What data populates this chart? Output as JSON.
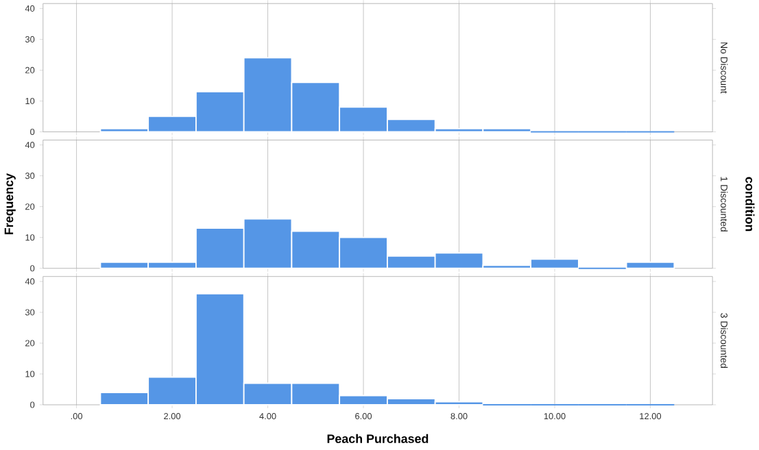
{
  "chart_data": [
    {
      "type": "histogram",
      "y2label": "No Discount",
      "bins": [
        0.5,
        1.5,
        2.5,
        3.5,
        4.5,
        5.5,
        6.5,
        7.5,
        8.5,
        9.5,
        10.5,
        11.5,
        12.5
      ],
      "values": [
        1,
        5,
        13,
        24,
        16,
        8,
        4,
        1,
        1,
        0,
        0,
        0
      ],
      "color": "#5596e6",
      "xlim": [
        -0.7,
        13.3
      ],
      "ylim": [
        0,
        41.6
      ],
      "xticks": [
        {
          "value": 0,
          "label": null
        },
        {
          "value": 2,
          "label": null
        },
        {
          "value": 4,
          "label": null
        },
        {
          "value": 6,
          "label": null
        },
        {
          "value": 8,
          "label": null
        },
        {
          "value": 10,
          "label": null
        },
        {
          "value": 12,
          "label": null
        }
      ],
      "yticks": [
        0,
        10,
        20,
        30,
        40
      ],
      "grid": "x",
      "tick_labels": "y"
    },
    {
      "type": "histogram",
      "y2label": "1 Discounted",
      "ylabel": "Frequency",
      "annotations": [
        "condition"
      ],
      "bins": [
        0.5,
        1.5,
        2.5,
        3.5,
        4.5,
        5.5,
        6.5,
        7.5,
        8.5,
        9.5,
        10.5,
        11.5,
        12.5
      ],
      "values": [
        2,
        2,
        13,
        16,
        12,
        10,
        4,
        5,
        1,
        3,
        0,
        2
      ],
      "color": "#5596e6",
      "xlim": [
        -0.7,
        13.3
      ],
      "ylim": [
        0,
        41.6
      ],
      "xticks": [
        {
          "value": 0,
          "label": null
        },
        {
          "value": 2,
          "label": null
        },
        {
          "value": 4,
          "label": null
        },
        {
          "value": 6,
          "label": null
        },
        {
          "value": 8,
          "label": null
        },
        {
          "value": 10,
          "label": null
        },
        {
          "value": 12,
          "label": null
        }
      ],
      "yticks": [
        0,
        10,
        20,
        30,
        40
      ],
      "grid": "x",
      "tick_labels": "y"
    },
    {
      "type": "histogram",
      "y2label": "3 Discounted",
      "xlabel": "Peach Purchased",
      "bins": [
        0.5,
        1.5,
        2.5,
        3.5,
        4.5,
        5.5,
        6.5,
        7.5,
        8.5,
        9.5,
        10.5,
        11.5,
        12.5
      ],
      "values": [
        4,
        9,
        36,
        7,
        7,
        3,
        2,
        1,
        0,
        0,
        0,
        0
      ],
      "color": "#5596e6",
      "xlim": [
        -0.7,
        13.3
      ],
      "ylim": [
        0,
        41.6
      ],
      "xticks": [
        {
          "value": 0,
          "label": ".00"
        },
        {
          "value": 2,
          "label": "2.00"
        },
        {
          "value": 4,
          "label": "4.00"
        },
        {
          "value": 6,
          "label": "6.00"
        },
        {
          "value": 8,
          "label": "8.00"
        },
        {
          "value": 10,
          "label": "10.00"
        },
        {
          "value": 12,
          "label": "12.00"
        }
      ],
      "yticks": [
        0,
        10,
        20,
        30,
        40
      ],
      "grid": "x"
    }
  ]
}
